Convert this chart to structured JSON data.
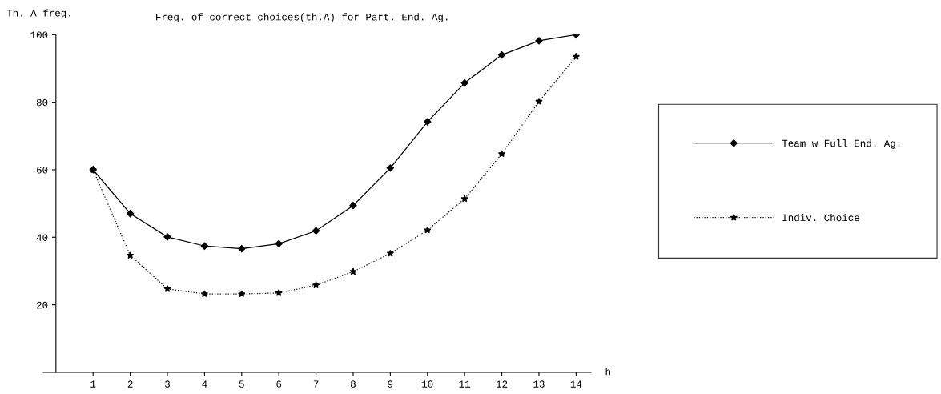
{
  "chart_data": {
    "type": "line",
    "title": "Freq. of correct choices(th.A) for Part. End. Ag.",
    "ylabel": "Th. A freq.",
    "xlabel": "h",
    "x": [
      1,
      2,
      3,
      4,
      5,
      6,
      7,
      8,
      9,
      10,
      11,
      12,
      13,
      14
    ],
    "series": [
      {
        "name": "Team w Full End. Ag.",
        "color": "#000000",
        "marker": "diamond",
        "line_style": "solid",
        "values": [
          60,
          47,
          40.1,
          37.4,
          36.6,
          38.1,
          41.9,
          49.4,
          60.5,
          74.2,
          85.7,
          94,
          98.2,
          100
        ]
      },
      {
        "name": "Indiv. Choice",
        "color": "#000000",
        "marker": "star",
        "line_style": "dotted",
        "values": [
          60,
          34.6,
          24.7,
          23.2,
          23.2,
          23.5,
          25.8,
          29.8,
          35.2,
          42.1,
          51.4,
          64.7,
          80.2,
          93.5
        ]
      }
    ],
    "xlim": [
      -0.34,
      14.4
    ],
    "ylim": [
      0,
      100
    ],
    "xticks": [
      1,
      2,
      3,
      4,
      5,
      6,
      7,
      8,
      9,
      10,
      11,
      12,
      13,
      14
    ],
    "yticks": [
      20,
      40,
      60,
      80,
      100
    ],
    "grid": false,
    "legend": "right"
  }
}
